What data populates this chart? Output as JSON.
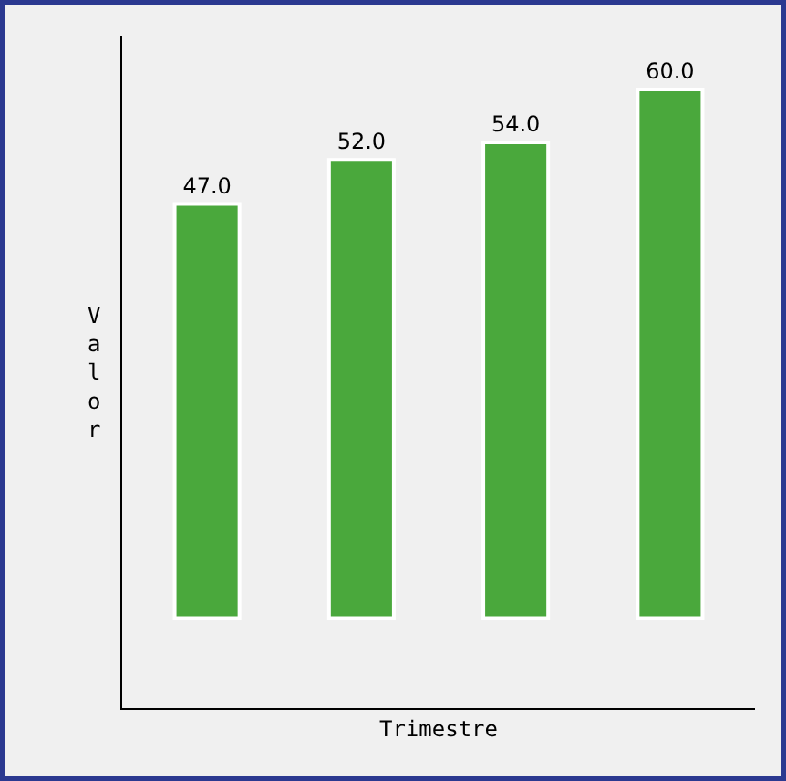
{
  "chart_data": {
    "type": "bar",
    "categories": [
      null,
      null,
      null,
      null
    ],
    "values": [
      47,
      52,
      54,
      60
    ],
    "value_labels": [
      "47.0",
      "52.0",
      "54.0",
      "60.0"
    ],
    "color": "#4aa83c",
    "xlabel": "Trimestre",
    "ylabel": "Valor"
  }
}
